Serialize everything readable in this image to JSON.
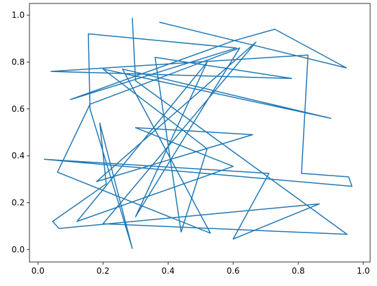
{
  "chart_data": {
    "type": "line",
    "x": [
      0.373,
      0.948,
      0.728,
      0.6,
      0.1,
      0.61,
      0.155,
      0.16,
      0.29,
      0.19,
      0.21,
      0.045,
      0.065,
      0.865,
      0.6,
      0.71,
      0.02,
      0.965,
      0.955,
      0.81,
      0.83,
      0.04,
      0.78,
      0.36,
      0.44,
      0.52,
      0.2,
      0.9,
      0.26,
      0.53,
      0.06,
      0.16,
      0.62,
      0.3,
      0.52,
      0.12,
      0.6,
      0.3,
      0.66,
      0.18,
      0.67,
      0.2,
      0.95,
      0.3,
      0.29
    ],
    "series": [
      {
        "color": "#1f77b4",
        "values": [
          0.97,
          0.775,
          0.94,
          0.89,
          0.64,
          0.86,
          0.92,
          0.6,
          0.005,
          0.54,
          0.28,
          0.12,
          0.09,
          0.195,
          0.045,
          0.325,
          0.385,
          0.27,
          0.31,
          0.325,
          0.83,
          0.76,
          0.73,
          0.82,
          0.075,
          0.43,
          0.77,
          0.56,
          0.77,
          0.07,
          0.33,
          0.62,
          0.86,
          0.14,
          0.8,
          0.12,
          0.355,
          0.52,
          0.49,
          0.29,
          0.885,
          0.11,
          0.065,
          0.72,
          0.988
        ]
      }
    ],
    "xlim": [
      -0.026,
      1.021
    ],
    "ylim": [
      -0.053,
      1.05
    ],
    "xticks": [
      {
        "value": 0,
        "label": "0.0"
      },
      {
        "value": 0.2,
        "label": "0.2"
      },
      {
        "value": 0.4,
        "label": "0.4"
      },
      {
        "value": 0.6,
        "label": "0.6"
      },
      {
        "value": 0.8,
        "label": "0.8"
      },
      {
        "value": 1,
        "label": "1.0"
      }
    ],
    "yticks": [
      {
        "value": 0,
        "label": "0.0"
      },
      {
        "value": 0.2,
        "label": "0.2"
      },
      {
        "value": 0.4,
        "label": "0.4"
      },
      {
        "value": 0.6,
        "label": "0.6"
      },
      {
        "value": 0.8,
        "label": "0.8"
      },
      {
        "value": 1,
        "label": "1.0"
      }
    ]
  }
}
